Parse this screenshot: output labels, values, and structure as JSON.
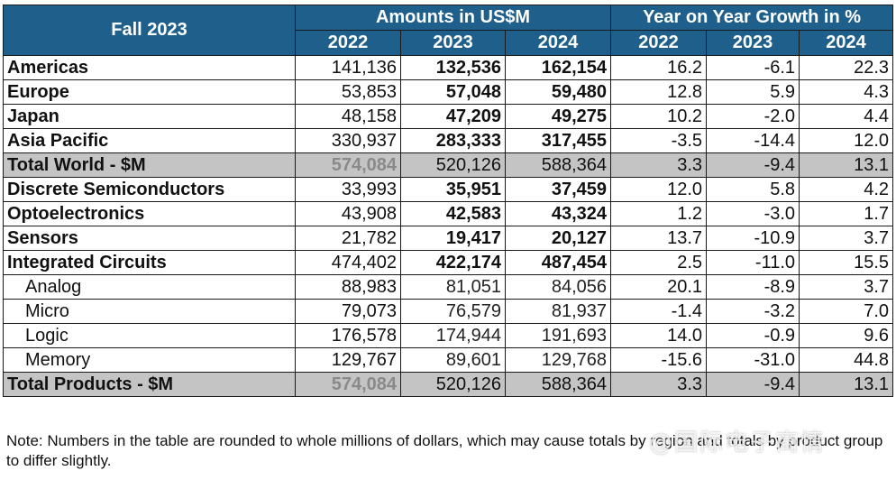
{
  "header": {
    "corner": "Fall 2023",
    "group_amounts": "Amounts in US$M",
    "group_growth": "Year on Year Growth in %",
    "years": [
      "2022",
      "2023",
      "2024",
      "2022",
      "2023",
      "2024"
    ]
  },
  "rows": [
    {
      "label": "Americas",
      "kind": "major",
      "values": [
        "141,136",
        "132,536",
        "162,154",
        "16.2",
        "-6.1",
        "22.3"
      ]
    },
    {
      "label": "Europe",
      "kind": "major",
      "values": [
        "53,853",
        "57,048",
        "59,480",
        "12.8",
        "5.9",
        "4.3"
      ]
    },
    {
      "label": "Japan",
      "kind": "major",
      "values": [
        "48,158",
        "47,209",
        "49,275",
        "10.2",
        "-2.0",
        "4.4"
      ]
    },
    {
      "label": "Asia Pacific",
      "kind": "major",
      "values": [
        "330,937",
        "283,333",
        "317,455",
        "-3.5",
        "-14.4",
        "12.0"
      ]
    },
    {
      "label": "Total World - $M",
      "kind": "total",
      "values": [
        "574,084",
        "520,126",
        "588,364",
        "3.3",
        "-9.4",
        "13.1"
      ]
    },
    {
      "label": "Discrete Semiconductors",
      "kind": "major",
      "values": [
        "33,993",
        "35,951",
        "37,459",
        "12.0",
        "5.8",
        "4.2"
      ]
    },
    {
      "label": "Optoelectronics",
      "kind": "major",
      "values": [
        "43,908",
        "42,583",
        "43,324",
        "1.2",
        "-3.0",
        "1.7"
      ]
    },
    {
      "label": "Sensors",
      "kind": "major",
      "values": [
        "21,782",
        "19,417",
        "20,127",
        "13.7",
        "-10.9",
        "3.7"
      ]
    },
    {
      "label": "Integrated Circuits",
      "kind": "major",
      "values": [
        "474,402",
        "422,174",
        "487,454",
        "2.5",
        "-11.0",
        "15.5"
      ]
    },
    {
      "label": "Analog",
      "kind": "sub",
      "values": [
        "88,983",
        "81,051",
        "84,056",
        "20.1",
        "-8.9",
        "3.7"
      ]
    },
    {
      "label": "Micro",
      "kind": "sub",
      "values": [
        "79,073",
        "76,579",
        "81,937",
        "-1.4",
        "-3.2",
        "7.0"
      ]
    },
    {
      "label": "Logic",
      "kind": "sub",
      "values": [
        "176,578",
        "174,944",
        "191,693",
        "14.0",
        "-0.9",
        "9.6"
      ]
    },
    {
      "label": "Memory",
      "kind": "sub",
      "values": [
        "129,767",
        "89,601",
        "129,768",
        "-15.6",
        "-31.0",
        "44.8"
      ]
    },
    {
      "label": "Total Products - $M",
      "kind": "total",
      "values": [
        "574,084",
        "520,126",
        "588,364",
        "3.3",
        "-9.4",
        "13.1"
      ]
    }
  ],
  "note": "Note: Numbers in the table are rounded to whole millions of dollars, which may cause totals by region and totals by product group to differ slightly.",
  "watermark": "@国际电子商情",
  "colors": {
    "header_bg": "#1f5f8b",
    "total_row_bg": "#c4c4c4",
    "muted_2022": "#8c8c8c"
  }
}
